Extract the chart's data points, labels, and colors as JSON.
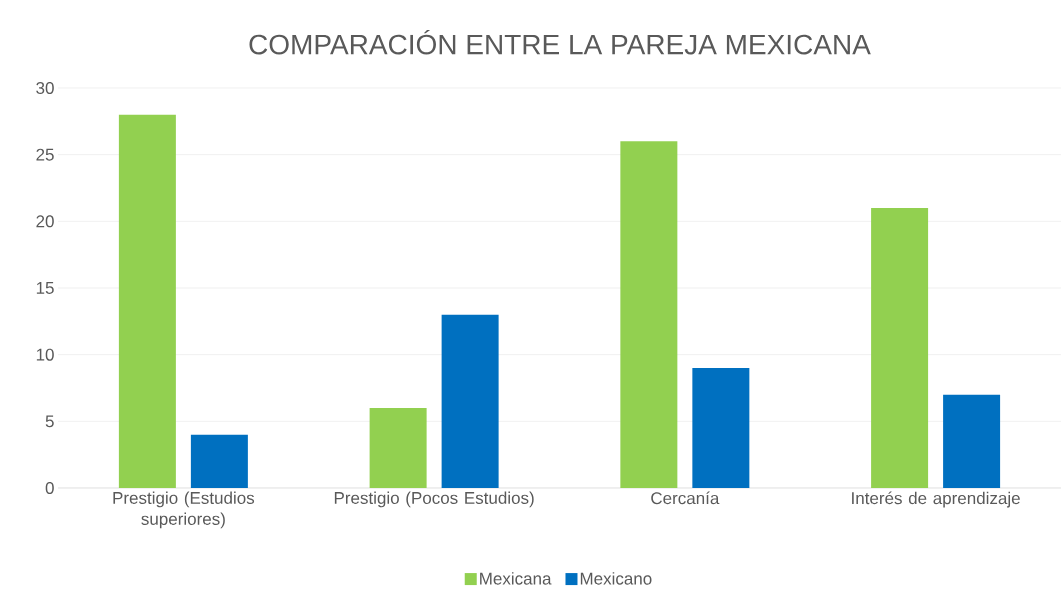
{
  "chart_data": {
    "type": "bar",
    "title": "COMPARACIÓN ENTRE LA PAREJA MEXICANA",
    "categories": [
      "Prestigio (Estudios superiores)",
      "Prestigio (Pocos Estudios)",
      "Cercanía",
      "Interés de aprendizaje"
    ],
    "series": [
      {
        "name": "Mexicana",
        "color": "#92d050",
        "values": [
          28,
          6,
          26,
          21
        ]
      },
      {
        "name": "Mexicano",
        "color": "#0070c0",
        "values": [
          4,
          13,
          9,
          7
        ]
      }
    ],
    "ylim": [
      0,
      30
    ],
    "yticks": [
      0,
      5,
      10,
      15,
      20,
      25,
      30
    ],
    "grid": "y",
    "legend": "bottom"
  }
}
